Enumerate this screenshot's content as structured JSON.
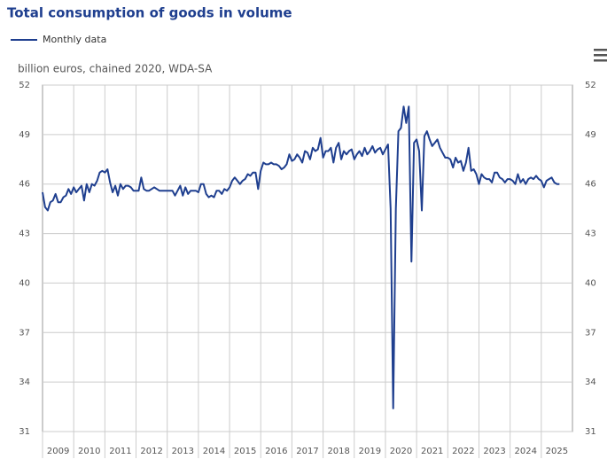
{
  "chart_data": {
    "type": "line",
    "title": "Total consumption of goods in volume",
    "unit_label": "billion euros, chained 2020, WDA-SA",
    "categories": [
      "2009",
      "2010",
      "2011",
      "2012",
      "2013",
      "2014",
      "2015",
      "2016",
      "2017",
      "2018",
      "2019",
      "2020",
      "2021",
      "2022",
      "2023",
      "2024",
      "2025"
    ],
    "series": [
      {
        "name": "Monthly data",
        "color": "#1f3f8f",
        "values": [
          [
            45.5,
            44.6,
            44.4,
            44.9,
            45.0,
            45.4,
            44.9,
            44.9,
            45.2,
            45.3,
            45.7,
            45.4
          ],
          [
            45.8,
            45.5,
            45.7,
            45.9,
            45.0,
            46.0,
            45.5,
            46.0,
            45.9,
            46.2,
            46.7,
            46.8
          ],
          [
            46.7,
            46.9,
            46.1,
            45.5,
            45.9,
            45.3,
            46.0,
            45.7,
            45.9,
            45.9,
            45.8,
            45.6
          ],
          [
            45.6,
            45.6,
            46.4,
            45.7,
            45.6,
            45.6,
            45.7,
            45.8,
            45.7,
            45.6,
            45.6,
            45.6
          ],
          [
            45.6,
            45.6,
            45.6,
            45.3,
            45.6,
            45.9,
            45.3,
            45.8,
            45.4,
            45.6,
            45.6,
            45.6
          ],
          [
            45.5,
            46.0,
            46.0,
            45.4,
            45.2,
            45.3,
            45.2,
            45.6,
            45.6,
            45.4,
            45.7,
            45.6
          ],
          [
            45.8,
            46.2,
            46.4,
            46.2,
            46.0,
            46.2,
            46.3,
            46.6,
            46.5,
            46.7,
            46.7,
            45.7
          ],
          [
            46.8,
            47.3,
            47.2,
            47.2,
            47.3,
            47.2,
            47.2,
            47.1,
            46.9,
            47.0,
            47.2,
            47.8
          ],
          [
            47.4,
            47.5,
            47.8,
            47.6,
            47.3,
            48.0,
            47.9,
            47.5,
            48.2,
            48.0,
            48.1,
            48.8
          ],
          [
            47.6,
            48.0,
            48.0,
            48.2,
            47.3,
            48.2,
            48.5,
            47.5,
            48.0,
            47.8,
            48.0,
            48.1
          ],
          [
            47.5,
            47.8,
            48.0,
            47.7,
            48.2,
            47.8,
            48.0,
            48.3,
            47.9,
            48.1,
            48.2,
            47.8
          ],
          [
            48.1,
            48.4,
            44.5,
            32.4,
            44.5,
            49.2,
            49.4,
            50.7,
            49.7,
            50.7,
            41.3,
            48.5
          ],
          [
            48.7,
            48.0,
            44.4,
            48.9,
            49.2,
            48.7,
            48.3,
            48.5,
            48.7,
            48.2,
            47.9,
            47.6
          ],
          [
            47.6,
            47.5,
            47.0,
            47.6,
            47.3,
            47.4,
            46.8,
            47.3,
            48.2,
            46.8,
            46.9,
            46.6
          ],
          [
            46.0,
            46.6,
            46.4,
            46.3,
            46.3,
            46.1,
            46.7,
            46.7,
            46.4,
            46.3,
            46.1,
            46.3
          ],
          [
            46.3,
            46.2,
            46.0,
            46.6,
            46.1,
            46.3,
            46.0,
            46.3,
            46.4,
            46.3,
            46.5,
            46.3
          ],
          [
            46.2,
            45.8,
            46.2,
            46.3,
            46.4,
            46.1,
            46.0,
            46.0
          ]
        ]
      }
    ],
    "ylim": [
      31,
      52
    ],
    "yticks": [
      31,
      34,
      37,
      40,
      43,
      46,
      49,
      52
    ],
    "grid": true
  }
}
